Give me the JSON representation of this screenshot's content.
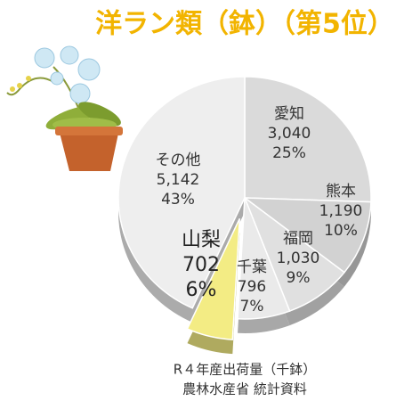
{
  "chart_data": {
    "type": "pie",
    "title": "洋ラン類（鉢）（第5位）",
    "categories": [
      "愛知",
      "熊本",
      "福岡",
      "千葉",
      "山梨",
      "その他"
    ],
    "values": [
      3040,
      1190,
      1030,
      796,
      702,
      5142
    ],
    "value_labels": [
      "3,040",
      "1,190",
      "1,030",
      "796",
      "702",
      "5,142"
    ],
    "percents": [
      25,
      10,
      9,
      7,
      6,
      43
    ],
    "percent_labels": [
      "25%",
      "10%",
      "9%",
      "7%",
      "6%",
      "43%"
    ],
    "colors": [
      "#dadada",
      "#d2d2d2",
      "#e0e0e0",
      "#eaeaea",
      "#f3ec84",
      "#eeeeee"
    ],
    "highlight": 4,
    "source": [
      "R４年産出荷量（千鉢）",
      "農林水産省 統計資料"
    ]
  }
}
